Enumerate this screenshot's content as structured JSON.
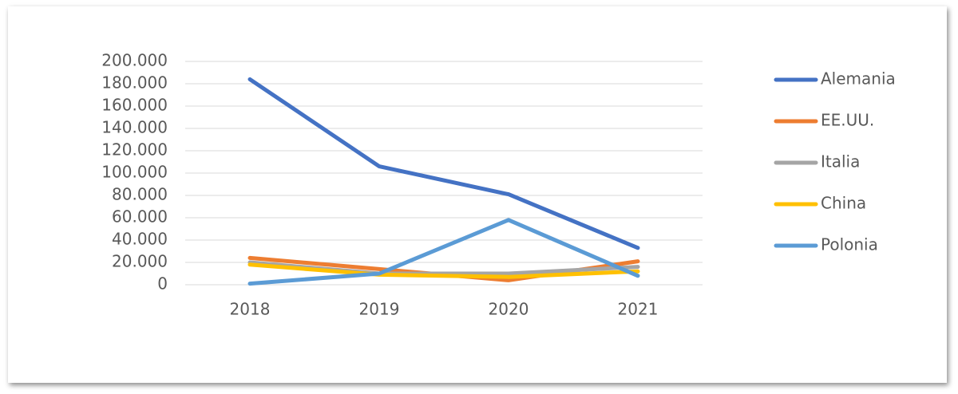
{
  "chart_data": {
    "type": "line",
    "categories": [
      "2018",
      "2019",
      "2020",
      "2021"
    ],
    "series": [
      {
        "name": "Alemania",
        "color": "#4472c4",
        "values": [
          184000,
          106000,
          81000,
          33000
        ]
      },
      {
        "name": "EE.UU.",
        "color": "#ed7d31",
        "values": [
          24000,
          14000,
          4000,
          21000
        ]
      },
      {
        "name": "Italia",
        "color": "#a5a5a5",
        "values": [
          20000,
          10000,
          10000,
          16000
        ]
      },
      {
        "name": "China",
        "color": "#ffc000",
        "values": [
          18000,
          9000,
          7000,
          12000
        ]
      },
      {
        "name": "Polonia",
        "color": "#5b9bd5",
        "values": [
          1000,
          10000,
          58000,
          8000
        ]
      }
    ],
    "ylim": [
      0,
      200000
    ],
    "yticks": [
      0,
      {
        "value": 20000,
        "label": "20.000"
      },
      {
        "value": 40000,
        "label": "40.000"
      },
      {
        "value": 60000,
        "label": "60.000"
      },
      {
        "value": 80000,
        "label": "80.000"
      },
      {
        "value": 100000,
        "label": "100.000"
      },
      {
        "value": 120000,
        "label": "120.000"
      },
      {
        "value": 140000,
        "label": "140.000"
      },
      {
        "value": 160000,
        "label": "160.000"
      },
      {
        "value": 180000,
        "label": "180.000"
      },
      {
        "value": 200000,
        "label": "200.000"
      }
    ],
    "grid": true,
    "legend": "right"
  }
}
